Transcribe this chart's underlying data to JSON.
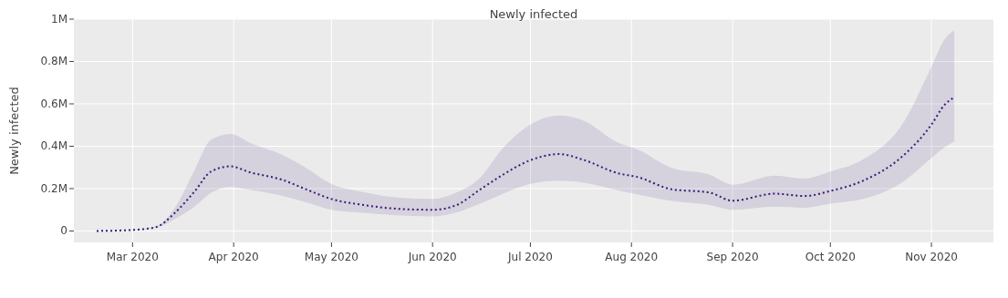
{
  "chart_data": {
    "type": "line",
    "title": "Newly infected",
    "ylabel": "Newly infected",
    "xlim": [
      "2020-02-12",
      "2020-11-20"
    ],
    "ylim": [
      -54000,
      1000000
    ],
    "xticks": [
      {
        "value": "2020-03-01",
        "label": "Mar 2020"
      },
      {
        "value": "2020-04-01",
        "label": "Apr 2020"
      },
      {
        "value": "2020-05-01",
        "label": "May 2020"
      },
      {
        "value": "2020-06-01",
        "label": "Jun 2020"
      },
      {
        "value": "2020-07-01",
        "label": "Jul 2020"
      },
      {
        "value": "2020-08-01",
        "label": "Aug 2020"
      },
      {
        "value": "2020-09-01",
        "label": "Sep 2020"
      },
      {
        "value": "2020-10-01",
        "label": "Oct 2020"
      },
      {
        "value": "2020-11-01",
        "label": "Nov 2020"
      }
    ],
    "yticks": [
      0,
      {
        "value": 200000,
        "label": "0.2M"
      },
      {
        "value": 400000,
        "label": "0.4M"
      },
      {
        "value": 600000,
        "label": "0.6M"
      },
      {
        "value": 800000,
        "label": "0.8M"
      },
      {
        "value": 1000000,
        "label": "1M"
      }
    ],
    "grid": true,
    "line_style": "dotted",
    "marker": "none",
    "x": [
      "2020-02-19",
      "2020-03-01",
      "2020-03-08",
      "2020-03-14",
      "2020-03-20",
      "2020-03-25",
      "2020-03-31",
      "2020-04-06",
      "2020-04-16",
      "2020-04-23",
      "2020-05-01",
      "2020-05-11",
      "2020-05-21",
      "2020-06-01",
      "2020-06-08",
      "2020-06-16",
      "2020-06-22",
      "2020-07-01",
      "2020-07-10",
      "2020-07-17",
      "2020-07-28",
      "2020-08-03",
      "2020-08-13",
      "2020-08-25",
      "2020-09-01",
      "2020-09-14",
      "2020-09-23",
      "2020-10-01",
      "2020-10-11",
      "2020-10-23",
      "2020-11-01",
      "2020-11-05",
      "2020-11-08"
    ],
    "series": [
      {
        "color": "#3b1a78",
        "values": [
          0,
          5000,
          17000,
          86000,
          186000,
          280000,
          305000,
          277000,
          241000,
          198000,
          151000,
          122000,
          105000,
          100000,
          120000,
          200000,
          260000,
          334000,
          363000,
          337000,
          272000,
          254000,
          198000,
          181000,
          143000,
          176000,
          165000,
          189000,
          237000,
          351000,
          502000,
          595000,
          631000
        ],
        "lower": [
          0,
          4000,
          15000,
          57000,
          115000,
          179000,
          208000,
          194000,
          165000,
          136000,
          100000,
          86000,
          74000,
          69000,
          86000,
          132000,
          172000,
          222000,
          237000,
          229000,
          191000,
          172000,
          143000,
          122000,
          100000,
          115000,
          110000,
          129000,
          151000,
          229000,
          344000,
          394000,
          423000
        ],
        "upper": [
          0,
          5000,
          20000,
          110000,
          287000,
          430000,
          458000,
          416000,
          359000,
          300000,
          222000,
          183000,
          158000,
          151000,
          179000,
          258000,
          380000,
          502000,
          545000,
          523000,
          416000,
          384000,
          300000,
          265000,
          218000,
          261000,
          247000,
          280000,
          337000,
          502000,
          775000,
          904000,
          947000
        ]
      }
    ]
  }
}
